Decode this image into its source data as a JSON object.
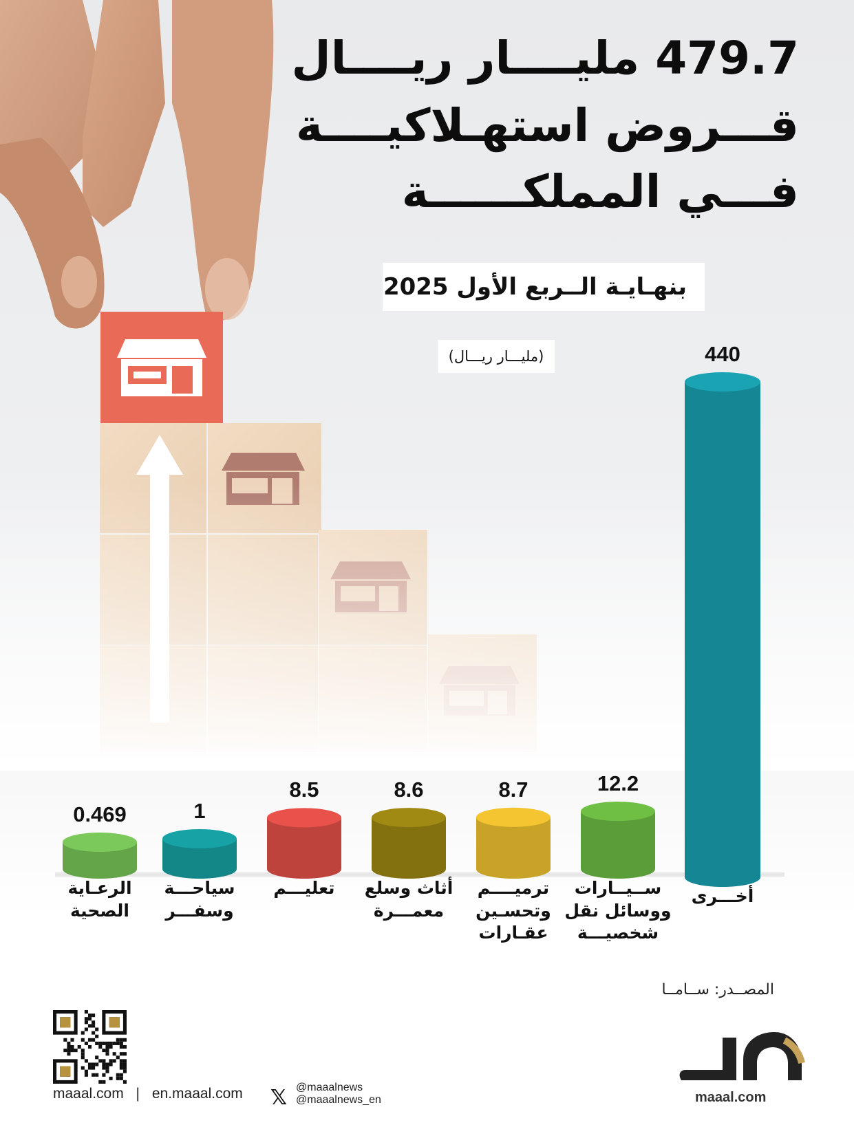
{
  "title_lines": [
    "479.7 مليــــار ريــــال",
    "قـــروض استهـلاكيــــة",
    "فـــي المملكــــــة"
  ],
  "subtitle": "بنهـايـة الــربع الأول 2025",
  "unit": "(مليـــار ريـــال)",
  "source": "المصــدر: ســامــا",
  "footer": {
    "site": "maaal.com",
    "site_en": "en.maaal.com",
    "handle1": "@maaalnews",
    "handle2": "@maaalnews_en",
    "logo_text": "maaal.com",
    "sep1": "|",
    "sep2": "|"
  },
  "colors": {
    "others": "#1aa3b3",
    "vehicles": "#6fbf45",
    "realestate": "#f5c531",
    "furniture": "#a08a14",
    "education": "#e9524a",
    "tourism": "#17a3a5",
    "health": "#7bc95a"
  },
  "chart_data": {
    "type": "bar",
    "title": "479.7 مليار ريال قروض استهلاكية في المملكة",
    "subtitle": "بنهاية الربع الأول 2025",
    "unit": "مليار ريال",
    "categories": [
      "أخـــرى",
      "ســيــارات ووسائل نقل شخصيـــة",
      "ترميــــم وتحسـين عقـارات",
      "أثاث وسلع معمـــرة",
      "تعليـــم",
      "سياحـــة وسفـــر",
      "الرعـاية الصحية"
    ],
    "values": [
      440,
      12.2,
      8.7,
      8.6,
      8.5,
      1,
      0.469
    ],
    "value_labels": [
      "440",
      "12.2",
      "8.7",
      "8.6",
      "8.5",
      "1",
      "0.469"
    ],
    "label_lines": [
      [
        "أخـــرى"
      ],
      [
        "ســيــارات",
        "ووسائل نقل",
        "شخصيـــة"
      ],
      [
        "ترميــــم",
        "وتحسـين",
        "عقـارات"
      ],
      [
        "أثاث وسلع",
        "معمـــرة"
      ],
      [
        "تعليـــم"
      ],
      [
        "سياحـــة",
        "وسفـــر"
      ],
      [
        "الرعـاية",
        "الصحية"
      ]
    ],
    "series_colors": [
      "#1aa3b3",
      "#6fbf45",
      "#f5c531",
      "#a08a14",
      "#e9524a",
      "#17a3a5",
      "#7bc95a"
    ],
    "source": "ساما"
  }
}
